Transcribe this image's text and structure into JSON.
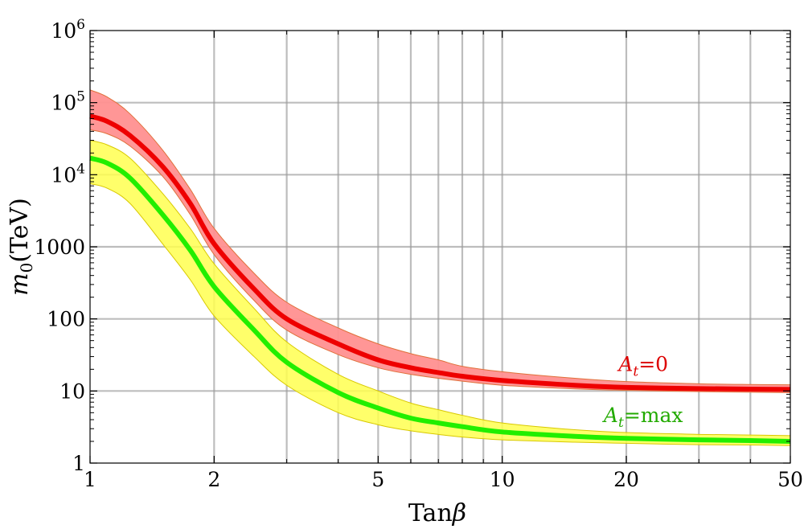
{
  "chart_data": {
    "type": "line",
    "xlabel": "Tanβ",
    "ylabel": "m0(TeV)",
    "xscale": "log",
    "yscale": "log",
    "xlim": [
      1,
      50
    ],
    "ylim": [
      1,
      1000000
    ],
    "grid": true,
    "x_ticks": [
      1,
      2,
      5,
      10,
      20,
      50
    ],
    "x_tick_labels": [
      "1",
      "2",
      "5",
      "10",
      "20",
      "50"
    ],
    "x_gridlines": [
      2,
      3,
      4,
      5,
      6,
      7,
      8,
      9,
      10,
      20,
      30,
      40
    ],
    "y_ticks": [
      1,
      10,
      100,
      1000,
      10000,
      100000,
      1000000
    ],
    "y_tick_labels": [
      "1",
      "10",
      "100",
      "1000",
      "10^4",
      "10^5",
      "10^6"
    ],
    "x": [
      1,
      1.1,
      1.25,
      1.5,
      1.75,
      2,
      2.5,
      3,
      4,
      5,
      6,
      7,
      8,
      10,
      15,
      20,
      30,
      40,
      50
    ],
    "series": [
      {
        "name": "A_t=0",
        "color": "#ee0000",
        "band_color": "#ff9090",
        "values": [
          65000,
          55000,
          35000,
          13000,
          4000,
          1100,
          260,
          100,
          45,
          27,
          21,
          18,
          16,
          14,
          12,
          11.2,
          10.8,
          10.6,
          10.5
        ],
        "upper": [
          150000,
          120000,
          70000,
          22000,
          6300,
          1800,
          430,
          170,
          75,
          45,
          33,
          27,
          22,
          18.5,
          15,
          13.5,
          12.6,
          12.3,
          12.2
        ],
        "lower": [
          42000,
          37000,
          25000,
          9500,
          2800,
          780,
          180,
          70,
          32,
          21,
          17,
          15,
          13.7,
          12,
          10.7,
          10.2,
          9.8,
          9.6,
          9.5
        ]
      },
      {
        "name": "A_t=max",
        "color": "#22ee00",
        "band_color": "#ffff50",
        "values": [
          17000,
          14500,
          9000,
          2800,
          900,
          280,
          70,
          25,
          9.5,
          5.8,
          4.2,
          3.6,
          3.2,
          2.7,
          2.35,
          2.2,
          2.1,
          2.05,
          2.0
        ],
        "upper": [
          30000,
          26000,
          17000,
          5500,
          1800,
          580,
          140,
          48,
          17,
          10,
          6.8,
          5.5,
          4.6,
          3.6,
          2.9,
          2.65,
          2.5,
          2.45,
          2.4
        ],
        "lower": [
          7500,
          6500,
          4000,
          1100,
          350,
          110,
          30,
          12,
          5,
          3.4,
          2.8,
          2.5,
          2.3,
          2.1,
          1.95,
          1.88,
          1.8,
          1.78,
          1.75
        ]
      }
    ],
    "annotations": [
      {
        "base": "A",
        "sub": "t",
        "rest": "=0",
        "x": 22,
        "y": 19,
        "color": "#dd0000"
      },
      {
        "base": "A",
        "sub": "t",
        "rest": "=max",
        "x": 22,
        "y": 3.7,
        "color": "#22aa00"
      }
    ]
  }
}
